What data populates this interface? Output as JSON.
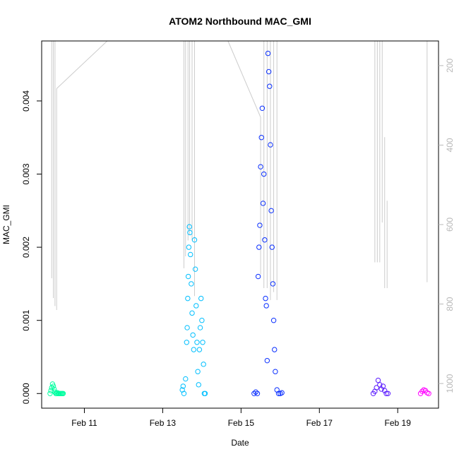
{
  "chart_data": {
    "type": "scatter",
    "title": "ATOM2 Northbound MAC_GMI",
    "xlabel": "Date",
    "ylabel": "MAC_GMI",
    "xlim": [
      "2014-02-09 21:50",
      "2014-02-20 01:00"
    ],
    "ylim": [
      -0.0002,
      0.00482
    ],
    "x_ticks": [
      {
        "date": "2014-02-11",
        "label": "Feb 11"
      },
      {
        "date": "2014-02-13",
        "label": "Feb 13"
      },
      {
        "date": "2014-02-15",
        "label": "Feb 15"
      },
      {
        "date": "2014-02-17",
        "label": "Feb 17"
      },
      {
        "date": "2014-02-19",
        "label": "Feb 19"
      }
    ],
    "y_ticks": [
      {
        "value": 0.0,
        "label": "0.000"
      },
      {
        "value": 0.001,
        "label": "0.001"
      },
      {
        "value": 0.002,
        "label": "0.002"
      },
      {
        "value": 0.003,
        "label": "0.003"
      },
      {
        "value": 0.004,
        "label": "0.004"
      }
    ],
    "y2_axis": {
      "reversed": true,
      "range": [
        138,
        1062
      ],
      "ticks": [
        {
          "value": 200,
          "label": "200"
        },
        {
          "value": 400,
          "label": "400"
        },
        {
          "value": 600,
          "label": "600"
        },
        {
          "value": 800,
          "label": "800"
        },
        {
          "value": 1000,
          "label": "1000"
        }
      ],
      "color": "#b8b8b8"
    },
    "grid": false,
    "legend": "none",
    "series": [
      {
        "color": "#00ffa0",
        "points": [
          [
            "2014-02-10 03:00",
            0.0
          ],
          [
            "2014-02-10 03:30",
            4e-05
          ],
          [
            "2014-02-10 04:00",
            8e-05
          ],
          [
            "2014-02-10 04:30",
            0.00013
          ],
          [
            "2014-02-10 05:00",
            0.0001
          ],
          [
            "2014-02-10 05:30",
            6e-05
          ],
          [
            "2014-02-10 06:00",
            2e-05
          ],
          [
            "2014-02-10 06:30",
            0.0
          ],
          [
            "2014-02-10 07:00",
            0.0
          ],
          [
            "2014-02-10 07:30",
            1e-05
          ],
          [
            "2014-02-10 08:00",
            0.0
          ],
          [
            "2014-02-10 08:30",
            0.0
          ],
          [
            "2014-02-10 09:00",
            0.0
          ],
          [
            "2014-02-10 09:30",
            0.0
          ],
          [
            "2014-02-10 10:00",
            0.0
          ],
          [
            "2014-02-10 10:30",
            0.0
          ],
          [
            "2014-02-10 11:00",
            0.0
          ]
        ]
      },
      {
        "color": "#00bfff",
        "points": [
          [
            "2014-02-13 12:00",
            5e-05
          ],
          [
            "2014-02-13 12:30",
            0.0001
          ],
          [
            "2014-02-13 13:00",
            0.0
          ],
          [
            "2014-02-13 14:00",
            0.0002
          ],
          [
            "2014-02-13 14:40",
            0.0007
          ],
          [
            "2014-02-13 15:00",
            0.0009
          ],
          [
            "2014-02-13 15:20",
            0.0013
          ],
          [
            "2014-02-13 15:40",
            0.0016
          ],
          [
            "2014-02-13 16:00",
            0.002
          ],
          [
            "2014-02-13 16:20",
            0.00228
          ],
          [
            "2014-02-13 16:40",
            0.0022
          ],
          [
            "2014-02-13 17:00",
            0.0019
          ],
          [
            "2014-02-13 17:30",
            0.0015
          ],
          [
            "2014-02-13 18:00",
            0.0011
          ],
          [
            "2014-02-13 18:30",
            0.0008
          ],
          [
            "2014-02-13 19:00",
            0.0006
          ],
          [
            "2014-02-13 19:30",
            0.0021
          ],
          [
            "2014-02-13 20:00",
            0.0017
          ],
          [
            "2014-02-13 20:30",
            0.0012
          ],
          [
            "2014-02-13 21:00",
            0.0007
          ],
          [
            "2014-02-13 21:30",
            0.0003
          ],
          [
            "2014-02-13 22:00",
            0.00012
          ],
          [
            "2014-02-13 22:30",
            0.0006
          ],
          [
            "2014-02-13 23:00",
            0.0009
          ],
          [
            "2014-02-13 23:30",
            0.0013
          ],
          [
            "2014-02-14 00:00",
            0.001
          ],
          [
            "2014-02-14 00:30",
            0.0007
          ],
          [
            "2014-02-14 01:00",
            0.0004
          ],
          [
            "2014-02-14 01:30",
            0.0
          ],
          [
            "2014-02-14 02:00",
            0.0
          ]
        ]
      },
      {
        "color": "#0a2fff",
        "points": [
          [
            "2014-02-15 08:00",
            0.0
          ],
          [
            "2014-02-15 09:00",
            2e-05
          ],
          [
            "2014-02-15 10:00",
            0.0
          ],
          [
            "2014-02-15 10:30",
            0.0016
          ],
          [
            "2014-02-15 11:00",
            0.002
          ],
          [
            "2014-02-15 11:30",
            0.0023
          ],
          [
            "2014-02-15 12:00",
            0.0031
          ],
          [
            "2014-02-15 12:30",
            0.0035
          ],
          [
            "2014-02-15 13:00",
            0.0039
          ],
          [
            "2014-02-15 13:30",
            0.0026
          ],
          [
            "2014-02-15 14:00",
            0.003
          ],
          [
            "2014-02-15 14:30",
            0.0021
          ],
          [
            "2014-02-15 15:00",
            0.0013
          ],
          [
            "2014-02-15 15:30",
            0.0012
          ],
          [
            "2014-02-15 16:00",
            0.00045
          ],
          [
            "2014-02-15 16:30",
            0.00465
          ],
          [
            "2014-02-15 17:00",
            0.0044
          ],
          [
            "2014-02-15 17:30",
            0.0042
          ],
          [
            "2014-02-15 18:00",
            0.0034
          ],
          [
            "2014-02-15 18:30",
            0.0025
          ],
          [
            "2014-02-15 19:00",
            0.002
          ],
          [
            "2014-02-15 19:30",
            0.0015
          ],
          [
            "2014-02-15 20:00",
            0.001
          ],
          [
            "2014-02-15 20:30",
            0.0006
          ],
          [
            "2014-02-15 21:00",
            0.0003
          ],
          [
            "2014-02-15 22:00",
            5e-05
          ],
          [
            "2014-02-15 23:00",
            0.0
          ],
          [
            "2014-02-16 00:00",
            0.0
          ],
          [
            "2014-02-16 01:00",
            1e-05
          ]
        ]
      },
      {
        "color": "#5a1aff",
        "points": [
          [
            "2014-02-18 09:00",
            0.0
          ],
          [
            "2014-02-18 10:00",
            3e-05
          ],
          [
            "2014-02-18 11:00",
            8e-05
          ],
          [
            "2014-02-18 12:00",
            0.00018
          ],
          [
            "2014-02-18 13:00",
            0.00012
          ],
          [
            "2014-02-18 14:00",
            6e-05
          ],
          [
            "2014-02-18 15:00",
            0.0001
          ],
          [
            "2014-02-18 16:00",
            4e-05
          ],
          [
            "2014-02-18 17:00",
            0.0
          ],
          [
            "2014-02-18 18:00",
            0.0
          ]
        ]
      },
      {
        "color": "#ff00ff",
        "points": [
          [
            "2014-02-19 14:00",
            0.0
          ],
          [
            "2014-02-19 15:00",
            3e-05
          ],
          [
            "2014-02-19 16:00",
            5e-05
          ],
          [
            "2014-02-19 17:00",
            4e-05
          ],
          [
            "2014-02-19 18:00",
            1e-05
          ],
          [
            "2014-02-19 19:00",
            0.0
          ]
        ]
      }
    ],
    "secondary_lines": {
      "color": "#cccccc",
      "axis": "y2",
      "segments": [
        {
          "x": "2014-02-10 04:00",
          "y2": [
            120,
            735
          ]
        },
        {
          "x": "2014-02-10 05:00",
          "y2": [
            120,
            785
          ]
        },
        {
          "x": "2014-02-10 06:00",
          "y2": [
            120,
            805
          ]
        },
        {
          "x": "2014-02-10 07:00",
          "y2": [
            258,
            815
          ]
        },
        {
          "x": "2014-02-13 13:00",
          "y2": [
            120,
            710
          ]
        },
        {
          "x": "2014-02-13 14:00",
          "y2": [
            120,
            680
          ]
        },
        {
          "x": "2014-02-13 15:30",
          "y2": [
            120,
            640
          ]
        },
        {
          "x": "2014-02-13 16:30",
          "y2": [
            120,
            625
          ]
        },
        {
          "x": "2014-02-13 18:00",
          "y2": [
            120,
            640
          ]
        },
        {
          "x": "2014-02-13 19:30",
          "y2": [
            120,
            780
          ]
        },
        {
          "x": "2014-02-15 12:00",
          "y2": [
            330,
            725
          ]
        },
        {
          "x": "2014-02-15 14:00",
          "y2": [
            120,
            760
          ]
        },
        {
          "x": "2014-02-15 16:00",
          "y2": [
            120,
            760
          ]
        },
        {
          "x": "2014-02-15 18:00",
          "y2": [
            120,
            790
          ]
        },
        {
          "x": "2014-02-15 20:00",
          "y2": [
            120,
            770
          ]
        },
        {
          "x": "2014-02-15 22:00",
          "y2": [
            120,
            790
          ]
        },
        {
          "x": "2014-02-18 10:00",
          "y2": [
            120,
            695
          ]
        },
        {
          "x": "2014-02-18 11:30",
          "y2": [
            120,
            695
          ]
        },
        {
          "x": "2014-02-18 13:00",
          "y2": [
            120,
            695
          ]
        },
        {
          "x": "2014-02-18 14:30",
          "y2": [
            120,
            595
          ]
        },
        {
          "x": "2014-02-18 16:00",
          "y2": [
            380,
            760
          ]
        },
        {
          "x": "2014-02-18 17:30",
          "y2": [
            540,
            760
          ]
        },
        {
          "x": "2014-02-19 18:00",
          "y2": [
            120,
            745
          ]
        }
      ],
      "connectors": [
        [
          [
            "2014-02-10 07:00",
            258
          ],
          [
            "2014-02-11 14:00",
            118
          ]
        ],
        [
          [
            "2014-02-14 16:00",
            120
          ],
          [
            "2014-02-15 12:00",
            330
          ]
        ]
      ]
    }
  }
}
